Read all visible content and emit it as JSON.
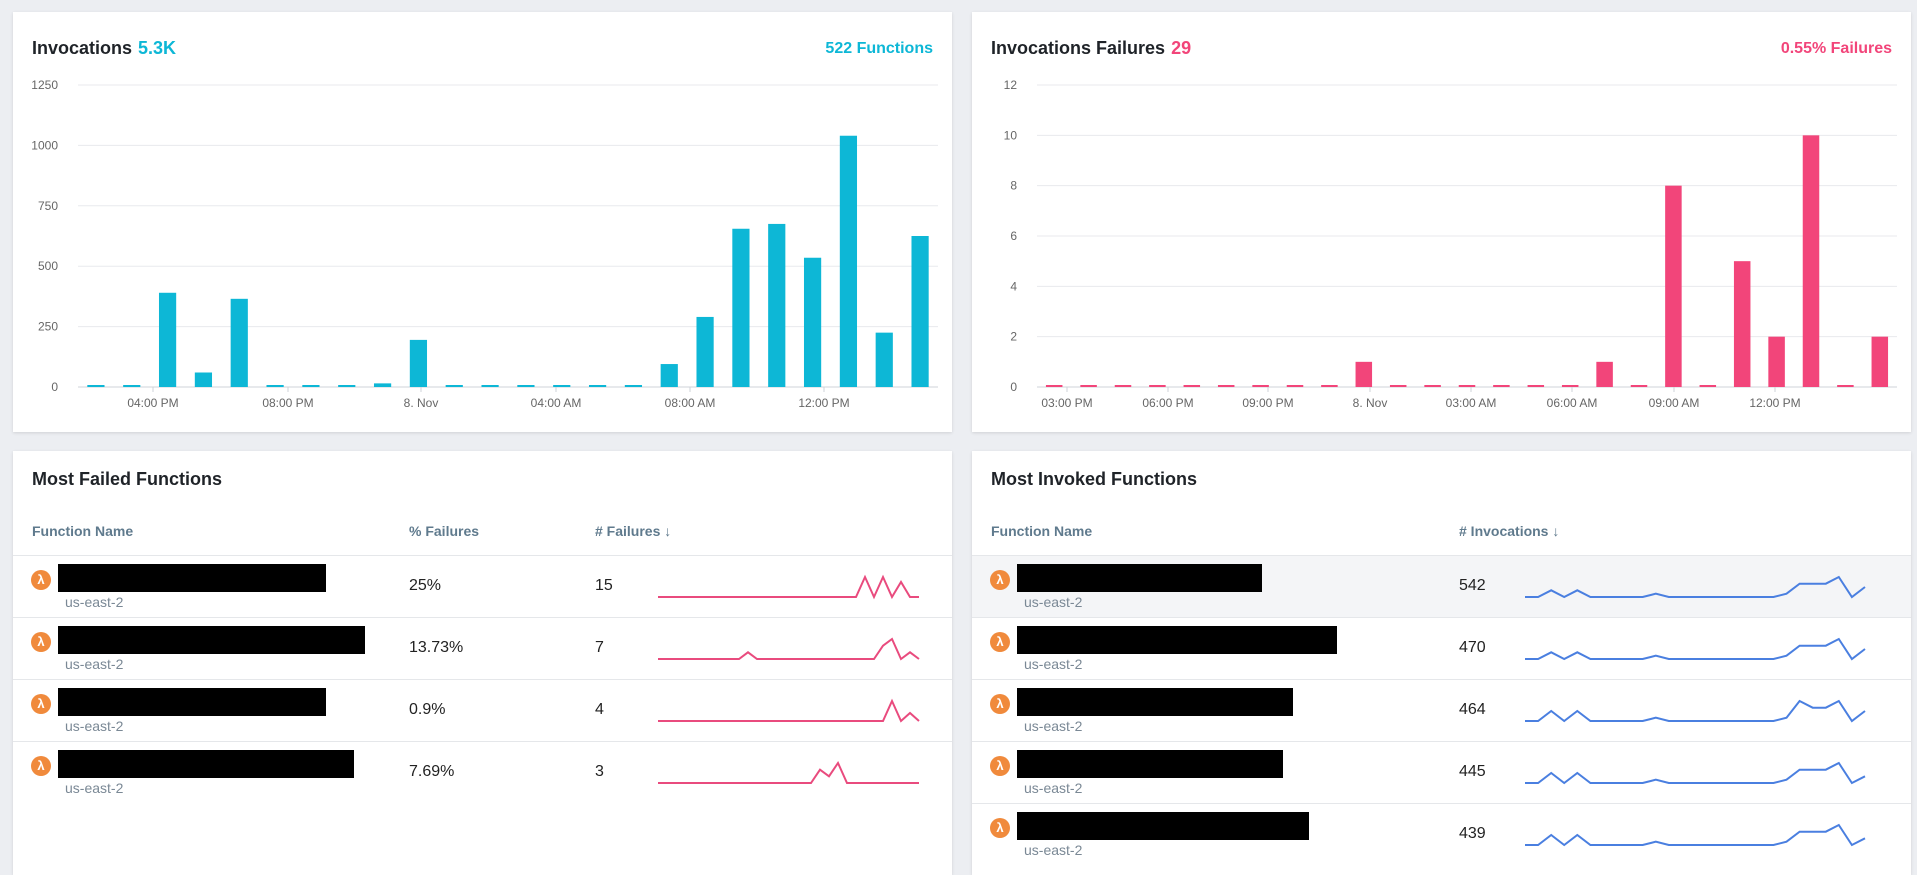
{
  "invocations": {
    "title": "Invocations",
    "value": "5.3K",
    "right_label": "522 Functions",
    "accent": "#0db7d6"
  },
  "failures": {
    "title": "Invocations Failures",
    "value": "29",
    "right_label": "0.55% Failures",
    "accent": "#f2457a"
  },
  "chart_data": [
    {
      "type": "bar",
      "title": "Invocations",
      "color": "#0db7d6",
      "yticks": [
        "0",
        "250",
        "500",
        "750",
        "1000",
        "1250"
      ],
      "ylim": [
        0,
        1250
      ],
      "xtick_labels": [
        "04:00 PM",
        "08:00 PM",
        "8. Nov",
        "04:00 AM",
        "08:00 AM",
        "12:00 PM"
      ],
      "values": [
        5,
        5,
        390,
        60,
        365,
        5,
        5,
        5,
        15,
        195,
        5,
        5,
        5,
        5,
        5,
        5,
        95,
        290,
        655,
        675,
        535,
        1040,
        225,
        625
      ],
      "grid": true
    },
    {
      "type": "bar",
      "title": "Invocations Failures",
      "color": "#f2457a",
      "yticks": [
        "0",
        "2",
        "4",
        "6",
        "8",
        "10",
        "12"
      ],
      "ylim": [
        0,
        12
      ],
      "xtick_labels": [
        "03:00 PM",
        "06:00 PM",
        "09:00 PM",
        "8. Nov",
        "03:00 AM",
        "06:00 AM",
        "09:00 AM",
        "12:00 PM"
      ],
      "values": [
        0.05,
        0.05,
        0.05,
        0.05,
        0.05,
        0.05,
        0.05,
        0.05,
        0.05,
        1,
        0.05,
        0.05,
        0.05,
        0.05,
        0.05,
        0.05,
        1,
        0.05,
        8,
        0.05,
        5,
        2,
        10,
        0.05,
        2
      ],
      "grid": true
    }
  ],
  "most_failed": {
    "title": "Most Failed Functions",
    "col_name": "Function Name",
    "col_pct": "% Failures",
    "col_count": "# Failures ↓",
    "spark_color": "#e94b7e",
    "rows": [
      {
        "region": "us-east-2",
        "pct": "25%",
        "count": "15",
        "spark": [
          0,
          0,
          0,
          0,
          0,
          0,
          0,
          0,
          0,
          0,
          0,
          0,
          0,
          0,
          0,
          0,
          0,
          0,
          0,
          0,
          0,
          0,
          0,
          2,
          0,
          2,
          0,
          1.5,
          0,
          0
        ]
      },
      {
        "region": "us-east-2",
        "pct": "13.73%",
        "count": "7",
        "spark": [
          0,
          0,
          0,
          0,
          0,
          0,
          0,
          0,
          0,
          0,
          1,
          0,
          0,
          0,
          0,
          0,
          0,
          0,
          0,
          0,
          0,
          0,
          0,
          0,
          0,
          2,
          3,
          0,
          1,
          0
        ]
      },
      {
        "region": "us-east-2",
        "pct": "0.9%",
        "count": "4",
        "spark": [
          0,
          0,
          0,
          0,
          0,
          0,
          0,
          0,
          0,
          0,
          0,
          0,
          0,
          0,
          0,
          0,
          0,
          0,
          0,
          0,
          0,
          0,
          0,
          0,
          0,
          0,
          2.5,
          0,
          1,
          0
        ]
      },
      {
        "region": "us-east-2",
        "pct": "7.69%",
        "count": "3",
        "spark": [
          0,
          0,
          0,
          0,
          0,
          0,
          0,
          0,
          0,
          0,
          0,
          0,
          0,
          0,
          0,
          0,
          0,
          0,
          2,
          1,
          3,
          0,
          0,
          0,
          0,
          0,
          0,
          0,
          0,
          0
        ]
      }
    ]
  },
  "most_invoked": {
    "title": "Most Invoked Functions",
    "col_name": "Function Name",
    "col_count": "# Invocations ↓",
    "spark_color": "#4a7fe0",
    "rows": [
      {
        "region": "us-east-2",
        "count": "542",
        "spark": [
          0,
          0,
          1,
          0,
          1,
          0,
          0,
          0,
          0,
          0,
          0.5,
          0,
          0,
          0,
          0,
          0,
          0,
          0,
          0,
          0,
          0.5,
          2,
          2,
          2,
          3,
          0,
          1.5
        ]
      },
      {
        "region": "us-east-2",
        "count": "470",
        "spark": [
          0,
          0,
          1,
          0,
          1,
          0,
          0,
          0,
          0,
          0,
          0.5,
          0,
          0,
          0,
          0,
          0,
          0,
          0,
          0,
          0,
          0.5,
          2,
          2,
          2,
          3,
          0,
          1.5
        ]
      },
      {
        "region": "us-east-2",
        "count": "464",
        "spark": [
          0,
          0,
          1.5,
          0,
          1.5,
          0,
          0,
          0,
          0,
          0,
          0.5,
          0,
          0,
          0,
          0,
          0,
          0,
          0,
          0,
          0,
          0.5,
          3,
          2,
          2,
          3,
          0,
          1.5
        ]
      },
      {
        "region": "us-east-2",
        "count": "445",
        "spark": [
          0,
          0,
          1.5,
          0,
          1.5,
          0,
          0,
          0,
          0,
          0,
          0.5,
          0,
          0,
          0,
          0,
          0,
          0,
          0,
          0,
          0,
          0.5,
          2,
          2,
          2,
          3,
          0,
          1
        ]
      },
      {
        "region": "us-east-2",
        "count": "439",
        "spark": [
          0,
          0,
          1.5,
          0,
          1.5,
          0,
          0,
          0,
          0,
          0,
          0.5,
          0,
          0,
          0,
          0,
          0,
          0,
          0,
          0,
          0,
          0.5,
          2,
          2,
          2,
          3,
          0,
          1
        ]
      }
    ]
  }
}
